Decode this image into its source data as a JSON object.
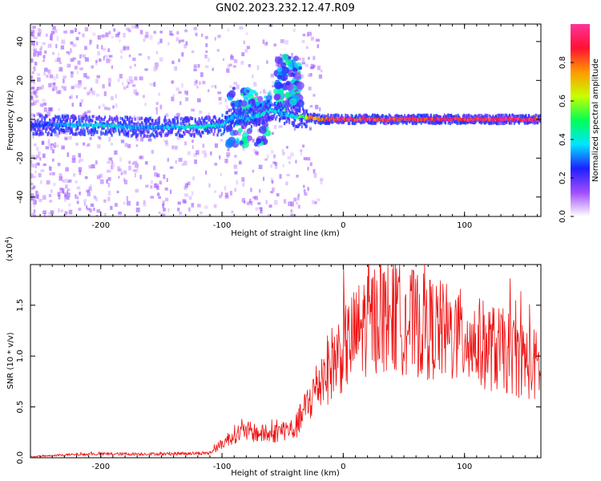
{
  "title": "GN02.2023.232.12.47.R09",
  "chart_data": [
    {
      "type": "heatmap",
      "xlabel": "Height of straight line (km)",
      "ylabel": "Frequency (Hz)",
      "xlim": [
        -258,
        163
      ],
      "ylim": [
        -50,
        49
      ],
      "xticks": [
        -200,
        -100,
        0,
        100
      ],
      "xtick_labels": [
        "-200",
        "-100",
        "0",
        "100"
      ],
      "yticks": [
        40,
        20,
        0,
        -20,
        -40
      ],
      "ytick_labels": [
        "40",
        "20",
        "0",
        "-20",
        "-40"
      ],
      "colorbar": {
        "label": "Normalized spectral amplitude",
        "ticks": [
          0.0,
          0.2,
          0.4,
          0.6,
          0.8
        ],
        "tick_labels": [
          "0.0",
          "0.2",
          "0.4",
          "0.6",
          "0.8"
        ],
        "colors": [
          "#ffffff",
          "#a14cff",
          "#1f1fff",
          "#00e5ff",
          "#00ff55",
          "#c8ff00",
          "#ff9900",
          "#ff1133",
          "#ff3399"
        ]
      },
      "ridge": {
        "x": [
          -255,
          -230,
          -200,
          -175,
          -150,
          -125,
          -100,
          -90,
          -80,
          -70,
          -60,
          -50,
          -40,
          -30,
          -20,
          -10,
          0,
          50,
          100,
          163
        ],
        "y": [
          -3,
          -3,
          -3,
          -4,
          -4,
          -4,
          -3,
          2,
          0,
          2,
          5,
          3,
          1,
          1,
          0,
          0,
          0,
          0,
          0,
          0
        ],
        "amplitude": [
          0.25,
          0.35,
          0.4,
          0.35,
          0.35,
          0.45,
          0.4,
          0.35,
          0.35,
          0.4,
          0.4,
          0.35,
          0.4,
          0.75,
          0.85,
          0.9,
          0.95,
          0.95,
          0.95,
          0.95
        ]
      },
      "features": [
        {
          "x": [
            -95,
            -60
          ],
          "y": [
            -13,
            16
          ]
        },
        {
          "x": [
            -55,
            -35
          ],
          "y": [
            5,
            32
          ]
        }
      ]
    },
    {
      "type": "line",
      "xlabel": "Height of straight line (km)",
      "ylabel": "SNR (10 * v/v)",
      "y_multiplier": "(x10",
      "y_multiplier_exp": "4",
      "y_multiplier_close": ")",
      "xlim": [
        -258,
        163
      ],
      "ylim": [
        0,
        1.9
      ],
      "xticks": [
        -200,
        -100,
        0,
        100
      ],
      "xtick_labels": [
        "-200",
        "-100",
        "0",
        "100"
      ],
      "yticks": [
        0.0,
        0.5,
        1.0,
        1.5
      ],
      "ytick_labels": [
        "0.0",
        "0.5",
        "1.0",
        "1.5"
      ],
      "color": "#ee1111",
      "envelope": {
        "x": [
          -258,
          -230,
          -200,
          -150,
          -110,
          -100,
          -90,
          -80,
          -70,
          -60,
          -50,
          -40,
          -30,
          -20,
          -10,
          0,
          10,
          20,
          30,
          40,
          60,
          80,
          100,
          120,
          140,
          163
        ],
        "y": [
          0.01,
          0.03,
          0.04,
          0.04,
          0.05,
          0.15,
          0.25,
          0.28,
          0.26,
          0.24,
          0.3,
          0.3,
          0.55,
          0.8,
          1.0,
          1.15,
          1.3,
          1.45,
          1.5,
          1.5,
          1.42,
          1.35,
          1.27,
          1.18,
          1.1,
          0.95
        ]
      }
    }
  ]
}
